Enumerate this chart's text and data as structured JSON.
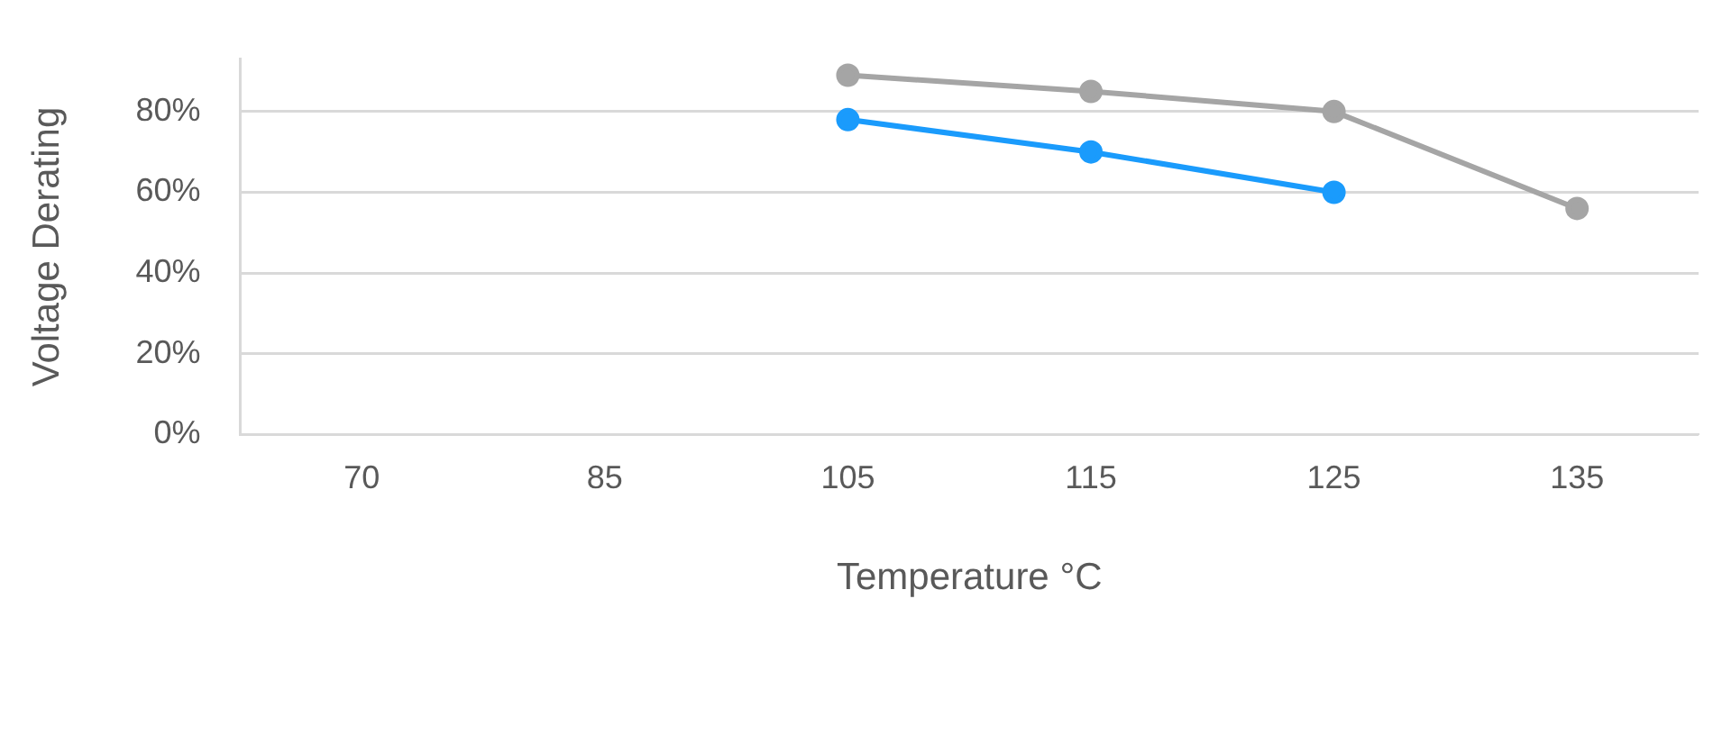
{
  "chart_data": {
    "type": "line",
    "xlabel": "Temperature °C",
    "ylabel": "Voltage Derating",
    "categories": [
      "70",
      "85",
      "105",
      "115",
      "125",
      "135"
    ],
    "series": [
      {
        "color": "#a5a5a5",
        "values": [
          null,
          null,
          89,
          85,
          80,
          56
        ]
      },
      {
        "color": "#1a9bfc",
        "values": [
          null,
          null,
          78,
          70,
          60,
          null
        ]
      }
    ],
    "ylim": [
      0,
      93
    ],
    "yticks": [
      {
        "value": 0,
        "label": "0%"
      },
      {
        "value": 20,
        "label": "20%"
      },
      {
        "value": 40,
        "label": "40%"
      },
      {
        "value": 60,
        "label": "60%"
      },
      {
        "value": 80,
        "label": "80%"
      }
    ],
    "grid": "y",
    "marker": "circle",
    "line_style": "solid",
    "legend": false
  }
}
